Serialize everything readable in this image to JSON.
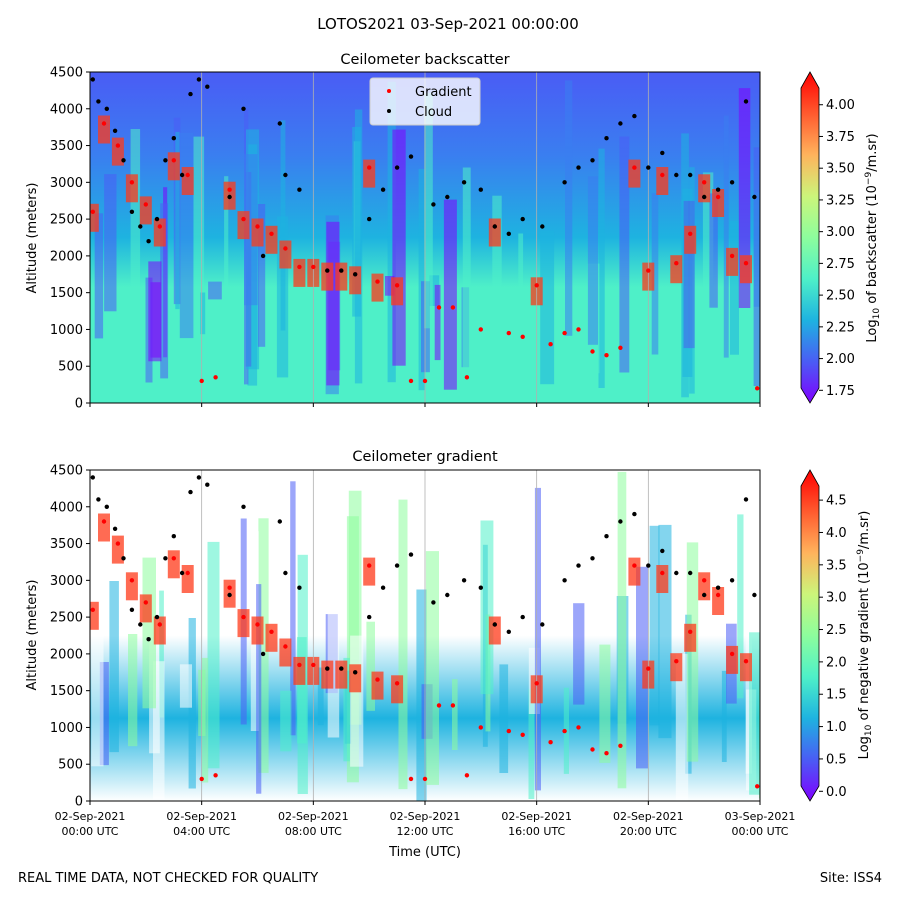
{
  "suptitle": "LOTOS2021 03-Sep-2021 00:00:00",
  "footer_left": "REAL TIME DATA, NOT CHECKED FOR QUALITY",
  "footer_right": "Site: ISS4",
  "colors": {
    "gradient_marker": "#ff0000",
    "cloud_marker": "#000000",
    "colormap": [
      "#7f00ff",
      "#4a5cf5",
      "#1eb3e0",
      "#4ef0c8",
      "#8dfd9d",
      "#ccf57a",
      "#ffb35c",
      "#ff5a2e",
      "#ff0000"
    ]
  },
  "chart_data": [
    {
      "type": "heatmap",
      "title": "Ceilometer backscatter",
      "ylabel": "Altitude (meters)",
      "ylim": [
        0,
        4500
      ],
      "yticks": [
        "0",
        "500",
        "1000",
        "1500",
        "2000",
        "2500",
        "3000",
        "3500",
        "4000",
        "4500"
      ],
      "xlim_hours": [
        0,
        24
      ],
      "colorbar": {
        "label_prefix": "Log",
        "label_sub": "10",
        "label_mid": " of backscatter (10",
        "label_sup": "−9",
        "label_suffix": "/m.sr)",
        "range": [
          1.65,
          4.25
        ],
        "ticks": [
          "1.75",
          "2.00",
          "2.25",
          "2.50",
          "2.75",
          "3.00",
          "3.25",
          "3.50",
          "3.75",
          "4.00"
        ],
        "tick_values": [
          1.75,
          2.0,
          2.25,
          2.5,
          2.75,
          3.0,
          3.25,
          3.5,
          3.75,
          4.0
        ]
      },
      "legend": {
        "position": "top-center",
        "entries": [
          "Gradient",
          "Cloud"
        ]
      },
      "series": [
        {
          "name": "Gradient",
          "hours": [
            0.1,
            0.5,
            1.0,
            1.5,
            2.0,
            2.5,
            3.0,
            3.5,
            4.0,
            4.5,
            5.0,
            5.5,
            6.0,
            6.5,
            7.0,
            7.5,
            8.0,
            8.5,
            9.0,
            9.5,
            10.0,
            10.3,
            11.0,
            11.5,
            12.0,
            12.5,
            13.0,
            13.5,
            14.0,
            14.5,
            15.0,
            15.5,
            16.0,
            16.5,
            17.0,
            17.5,
            18.0,
            18.5,
            19.0,
            19.5,
            20.0,
            20.5,
            21.0,
            21.5,
            22.0,
            22.5,
            23.0,
            23.5,
            23.9
          ],
          "altitude": [
            2600,
            3800,
            3500,
            3000,
            2700,
            2400,
            3300,
            3100,
            300,
            350,
            2900,
            2500,
            2400,
            2300,
            2100,
            1850,
            1850,
            1800,
            1800,
            1750,
            3200,
            1650,
            1600,
            300,
            300,
            1300,
            1300,
            350,
            1000,
            2400,
            950,
            900,
            1600,
            800,
            950,
            1000,
            700,
            650,
            750,
            3200,
            1800,
            3100,
            1900,
            2300,
            3000,
            2800,
            2000,
            1900,
            200
          ]
        },
        {
          "name": "Cloud",
          "hours": [
            0.1,
            0.3,
            0.6,
            0.9,
            1.2,
            1.5,
            1.8,
            2.1,
            2.4,
            2.7,
            3.0,
            3.3,
            3.6,
            3.9,
            4.2,
            5.0,
            5.5,
            6.2,
            6.8,
            7.0,
            7.5,
            8.5,
            9.0,
            9.5,
            10.0,
            10.5,
            11.0,
            11.5,
            12.3,
            12.8,
            13.4,
            14.0,
            14.5,
            15.0,
            15.5,
            16.2,
            17.0,
            17.5,
            18.0,
            18.5,
            19.0,
            19.5,
            20.0,
            20.5,
            21.0,
            21.5,
            22.0,
            22.5,
            23.0,
            23.5,
            23.8
          ],
          "altitude": [
            4400,
            4100,
            4000,
            3700,
            3300,
            2600,
            2400,
            2200,
            2500,
            3300,
            3600,
            3100,
            4200,
            4400,
            4300,
            2800,
            4000,
            2000,
            3800,
            3100,
            2900,
            1800,
            1800,
            1750,
            2500,
            2900,
            3200,
            3350,
            2700,
            2800,
            3000,
            2900,
            2400,
            2300,
            2500,
            2400,
            3000,
            3200,
            3300,
            3600,
            3800,
            3900,
            3200,
            3400,
            3100,
            3100,
            2800,
            2900,
            3000,
            4100,
            2800
          ]
        }
      ]
    },
    {
      "type": "heatmap",
      "title": "Ceilometer gradient",
      "ylabel": "Altitude (meters)",
      "xlabel": "Time (UTC)",
      "ylim": [
        0,
        4500
      ],
      "yticks": [
        "0",
        "500",
        "1000",
        "1500",
        "2000",
        "2500",
        "3000",
        "3500",
        "4000",
        "4500"
      ],
      "xlim_hours": [
        0,
        24
      ],
      "xticks": [
        {
          "hours": 0,
          "date": "02-Sep-2021",
          "time": "00:00 UTC"
        },
        {
          "hours": 4,
          "date": "02-Sep-2021",
          "time": "04:00 UTC"
        },
        {
          "hours": 8,
          "date": "02-Sep-2021",
          "time": "08:00 UTC"
        },
        {
          "hours": 12,
          "date": "02-Sep-2021",
          "time": "12:00 UTC"
        },
        {
          "hours": 16,
          "date": "02-Sep-2021",
          "time": "16:00 UTC"
        },
        {
          "hours": 20,
          "date": "02-Sep-2021",
          "time": "20:00 UTC"
        },
        {
          "hours": 24,
          "date": "03-Sep-2021",
          "time": "00:00 UTC"
        }
      ],
      "colorbar": {
        "label_prefix": "Log",
        "label_sub": "10",
        "label_mid": " of negative gradient (10",
        "label_sup": "−9",
        "label_suffix": "/m.sr)",
        "range": [
          -0.15,
          4.95
        ],
        "ticks": [
          "0.0",
          "0.5",
          "1.0",
          "1.5",
          "2.0",
          "2.5",
          "3.0",
          "3.5",
          "4.0",
          "4.5"
        ],
        "tick_values": [
          0.0,
          0.5,
          1.0,
          1.5,
          2.0,
          2.5,
          3.0,
          3.5,
          4.0,
          4.5
        ]
      },
      "series": [
        {
          "name": "Gradient",
          "hours": [
            0.1,
            0.5,
            1.0,
            1.5,
            2.0,
            2.5,
            3.0,
            3.5,
            4.0,
            4.5,
            5.0,
            5.5,
            6.0,
            6.5,
            7.0,
            7.5,
            8.0,
            8.5,
            9.0,
            9.5,
            10.0,
            10.3,
            11.0,
            11.5,
            12.0,
            12.5,
            13.0,
            13.5,
            14.0,
            14.5,
            15.0,
            15.5,
            16.0,
            16.5,
            17.0,
            17.5,
            18.0,
            18.5,
            19.0,
            19.5,
            20.0,
            20.5,
            21.0,
            21.5,
            22.0,
            22.5,
            23.0,
            23.5,
            23.9
          ],
          "altitude": [
            2600,
            3800,
            3500,
            3000,
            2700,
            2400,
            3300,
            3100,
            300,
            350,
            2900,
            2500,
            2400,
            2300,
            2100,
            1850,
            1850,
            1800,
            1800,
            1750,
            3200,
            1650,
            1600,
            300,
            300,
            1300,
            1300,
            350,
            1000,
            2400,
            950,
            900,
            1600,
            800,
            950,
            1000,
            700,
            650,
            750,
            3200,
            1800,
            3100,
            1900,
            2300,
            3000,
            2800,
            2000,
            1900,
            200
          ]
        },
        {
          "name": "Cloud",
          "hours": [
            0.1,
            0.3,
            0.6,
            0.9,
            1.2,
            1.5,
            1.8,
            2.1,
            2.4,
            2.7,
            3.0,
            3.3,
            3.6,
            3.9,
            4.2,
            5.0,
            5.5,
            6.2,
            6.8,
            7.0,
            7.5,
            8.5,
            9.0,
            9.5,
            10.0,
            10.5,
            11.0,
            11.5,
            12.3,
            12.8,
            13.4,
            14.0,
            14.5,
            15.0,
            15.5,
            16.2,
            17.0,
            17.5,
            18.0,
            18.5,
            19.0,
            19.5,
            20.0,
            20.5,
            21.0,
            21.5,
            22.0,
            22.5,
            23.0,
            23.5,
            23.8
          ],
          "altitude": [
            4400,
            4100,
            4000,
            3700,
            3300,
            2600,
            2400,
            2200,
            2500,
            3300,
            3600,
            3100,
            4200,
            4400,
            4300,
            2800,
            4000,
            2000,
            3800,
            3100,
            2900,
            1800,
            1800,
            1750,
            2500,
            2900,
            3200,
            3350,
            2700,
            2800,
            3000,
            2900,
            2400,
            2300,
            2500,
            2400,
            3000,
            3200,
            3300,
            3600,
            3800,
            3900,
            3200,
            3400,
            3100,
            3100,
            2800,
            2900,
            3000,
            4100,
            2800
          ]
        }
      ]
    }
  ]
}
